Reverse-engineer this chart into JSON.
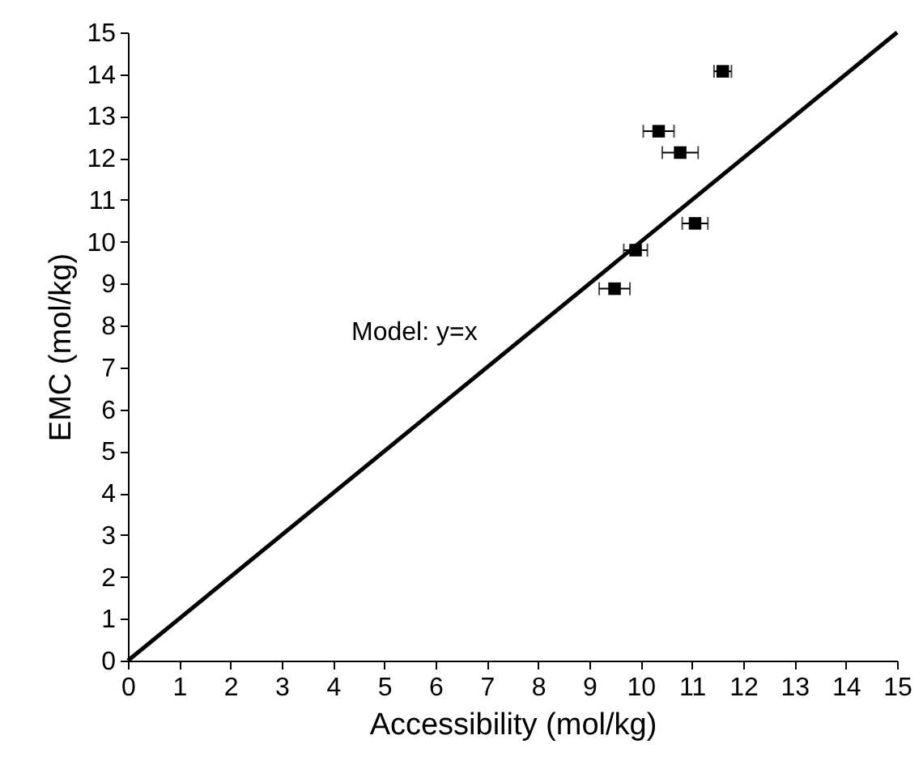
{
  "chart_data": {
    "type": "scatter",
    "xlabel": "Accessibility (mol/kg)",
    "ylabel": "EMC (mol/kg)",
    "xlim": [
      0,
      15
    ],
    "ylim": [
      0,
      15
    ],
    "xticks": [
      0,
      1,
      2,
      3,
      4,
      5,
      6,
      7,
      8,
      9,
      10,
      11,
      12,
      13,
      14,
      15
    ],
    "yticks": [
      0,
      1,
      2,
      3,
      4,
      5,
      6,
      7,
      8,
      9,
      10,
      11,
      12,
      13,
      14,
      15
    ],
    "grid": false,
    "marker": "square",
    "annotations": [
      "Model: y=x"
    ],
    "series": [
      {
        "color": "#000000",
        "x": [
          11.6,
          10.35,
          10.77,
          11.06,
          9.9,
          9.49
        ],
        "values": [
          14.07,
          12.64,
          12.13,
          10.44,
          9.8,
          8.88
        ],
        "xerrors": [
          0.17,
          0.3,
          0.35,
          0.25,
          0.23,
          0.3
        ]
      },
      {
        "type": "line",
        "color": "#000000",
        "line_style": "solid",
        "marker": "none",
        "x": [
          0,
          15
        ],
        "values": [
          0,
          15
        ]
      }
    ]
  }
}
